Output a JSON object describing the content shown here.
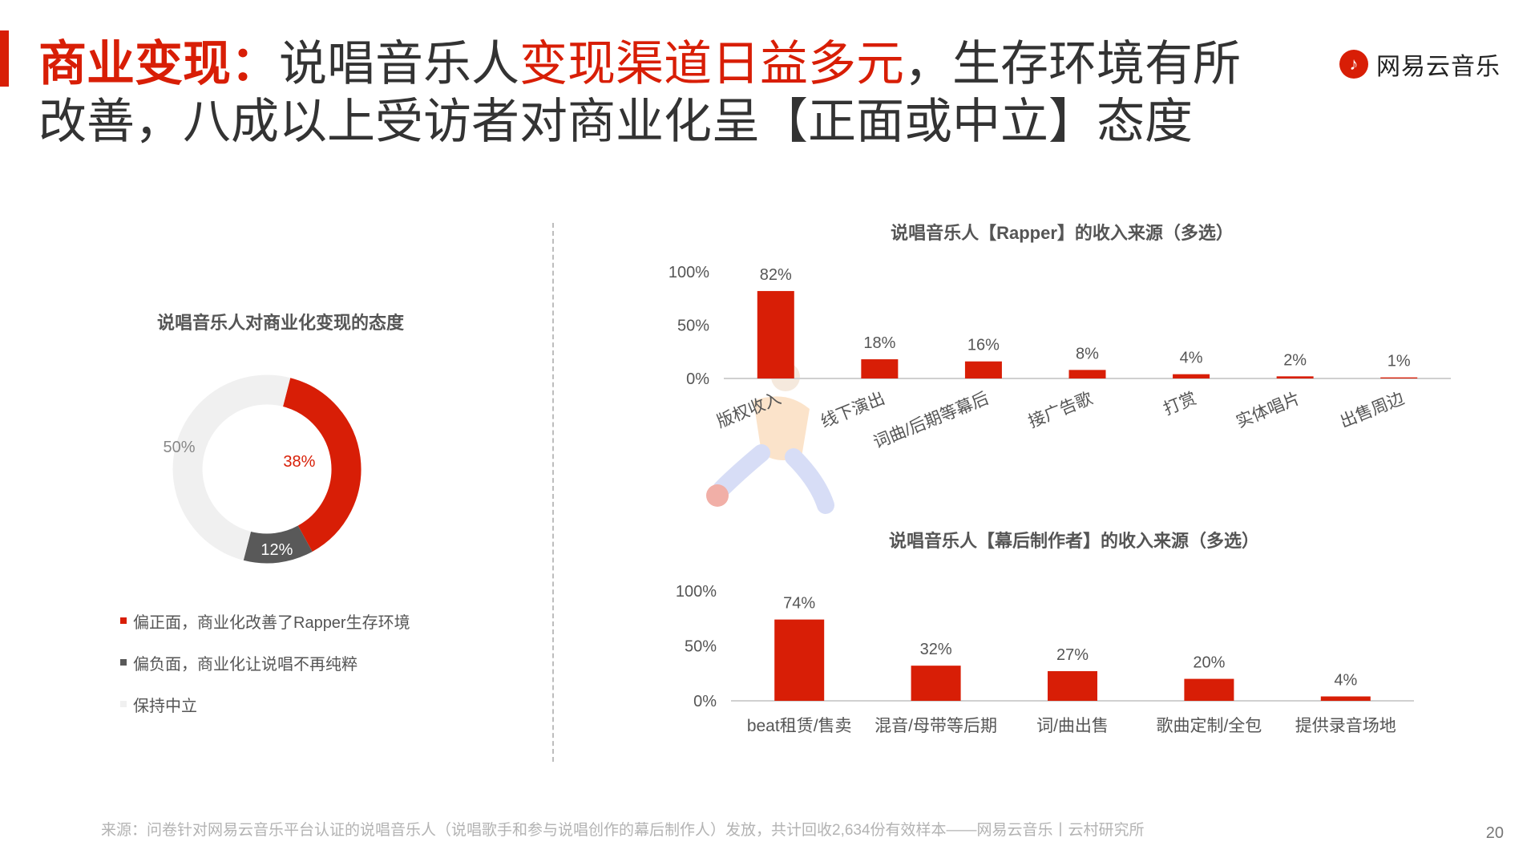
{
  "header": {
    "title_prefix": "商业变现：",
    "title_part1": "说唱音乐人",
    "title_highlight": "变现渠道日益多元",
    "title_part2": "，生存环境有所改善，八成以上受访者对商业化呈【正面或中立】态度",
    "brand": "网易云音乐",
    "brand_icon": "netease-cloud-music-logo-icon"
  },
  "colors": {
    "accent": "#d81e06",
    "dark": "#595959",
    "light": "#f0f0f0"
  },
  "chart_data": [
    {
      "type": "pie",
      "title": "说唱音乐人对商业化变现的态度",
      "donut": true,
      "slices": [
        {
          "label": "偏正面，商业化改善了Rapper生存环境",
          "value": 38,
          "display": "38%",
          "color": "#d81e06"
        },
        {
          "label": "偏负面，商业化让说唱不再纯粹",
          "value": 12,
          "display": "12%",
          "color": "#595959"
        },
        {
          "label": "保持中立",
          "value": 50,
          "display": "50%",
          "color": "#f0f0f0"
        }
      ],
      "legend_position": "bottom"
    },
    {
      "type": "bar",
      "title": "说唱音乐人【Rapper】的收入来源（多选）",
      "categories": [
        "版权收入",
        "线下演出",
        "词曲/后期等幕后",
        "接广告歌",
        "打赏",
        "实体唱片",
        "出售周边"
      ],
      "values": [
        82,
        18,
        16,
        8,
        4,
        2,
        1
      ],
      "value_labels": [
        "82%",
        "18%",
        "16%",
        "8%",
        "4%",
        "2%",
        "1%"
      ],
      "ylim": [
        0,
        100
      ],
      "yticks": [
        "0%",
        "50%",
        "100%"
      ],
      "color": "#d81e06"
    },
    {
      "type": "bar",
      "title": "说唱音乐人【幕后制作者】的收入来源（多选）",
      "categories": [
        "beat租赁/售卖",
        "混音/母带等后期",
        "词/曲出售",
        "歌曲定制/全包",
        "提供录音场地"
      ],
      "values": [
        74,
        32,
        27,
        20,
        4
      ],
      "value_labels": [
        "74%",
        "32%",
        "27%",
        "20%",
        "4%"
      ],
      "ylim": [
        0,
        100
      ],
      "yticks": [
        "0%",
        "50%",
        "100%"
      ],
      "color": "#d81e06"
    }
  ],
  "footer": {
    "source": "来源：问卷针对网易云音乐平台认证的说唱音乐人（说唱歌手和参与说唱创作的幕后制作人）发放，共计回收2,634份有效样本——网易云音乐丨云村研究所",
    "page": "20"
  }
}
